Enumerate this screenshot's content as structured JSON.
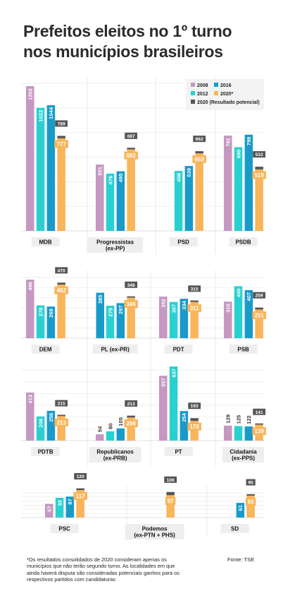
{
  "title_lines": [
    "Prefeitos eleitos no 1º turno",
    "nos municípios brasileiros"
  ],
  "footnote": "*Os resultados consolidados de 2020 consideram apenas os municípios que não terão segundo turno. As localidades em que ainda haverá disputa são consideradas potenciais ganhos para os respectivos partidos com candidaturas",
  "source": "Fonte: TSE",
  "colors": {
    "2008": "#c597c1",
    "2012": "#2ad0d0",
    "2016": "#199bc9",
    "2020*": "#f8b55a",
    "potential": "#555555"
  },
  "chart_data": {
    "type": "bar",
    "series_order": [
      "2008",
      "2012",
      "2016",
      "2020*"
    ],
    "legend": [
      {
        "key": "2008",
        "label": "2008"
      },
      {
        "key": "2016",
        "label": "2016"
      },
      {
        "key": "2012",
        "label": "2012"
      },
      {
        "key": "2020*",
        "label": "2020*"
      },
      {
        "key": "potential",
        "label": "2020 (Resultado potencial)"
      }
    ],
    "legend_position": "top-right",
    "panels": [
      {
        "ymax": 1202,
        "parties": [
          {
            "name": [
              "MDB"
            ],
            "values": [
              1202,
              1022,
              1044,
              777
            ],
            "potential": 789
          },
          {
            "name": [
              "Progressistas",
              "(ex-PP)"
            ],
            "values": [
              551,
              476,
              495,
              682
            ],
            "potential": 687
          },
          {
            "name": [
              "PSD"
            ],
            "values": [
              null,
              498,
              539,
              652
            ],
            "potential": 662
          },
          {
            "name": [
              "PSDB"
            ],
            "values": [
              791,
              695,
              799,
              519
            ],
            "potential": 533
          }
        ]
      },
      {
        "ymax": 496,
        "parties": [
          {
            "name": [
              "DEM"
            ],
            "values": [
              496,
              278,
              268,
              462
            ],
            "potential": 470
          },
          {
            "name": [
              "PL (ex-PR)"
            ],
            "values": [
              null,
              275,
              297,
              346
            ],
            "potential": 348,
            "extra": {
              "label": "385",
              "value": 385
            }
          },
          {
            "name": [
              "PDT"
            ],
            "values": [
              352,
              307,
              334,
              311
            ],
            "potential": 315
          },
          {
            "name": [
              "PSB"
            ],
            "values": [
              310,
              440,
              407,
              251
            ],
            "potential": 259
          }
        ]
      },
      {
        "ymax": 637,
        "parties": [
          {
            "name": [
              "PDTB"
            ],
            "values": [
              413,
              208,
              256,
              213
            ],
            "potential": 215
          },
          {
            "name": [
              "Republicanos",
              "(ex-PRB)"
            ],
            "values": [
              54,
              80,
              105,
              206
            ],
            "potential": 213
          },
          {
            "name": [
              "PT"
            ],
            "values": [
              557,
              637,
              254,
              178
            ],
            "potential": 193
          },
          {
            "name": [
              "Cidadania",
              "(ex-PPS)"
            ],
            "values": [
              129,
              125,
              122,
              139
            ],
            "potential": 141
          }
        ]
      },
      {
        "ymax": 120,
        "parties": [
          {
            "name": [
              "PSC"
            ],
            "values": [
              57,
              82,
              87,
              117
            ],
            "potential": 120
          },
          {
            "name": [
              "Podemos",
              "(ex-PTN + PHS)"
            ],
            "values": [
              null,
              null,
              null,
              97
            ],
            "potential": 106
          },
          {
            "name": [
              "SD"
            ],
            "values": [
              null,
              null,
              61,
              93
            ],
            "potential": 95
          }
        ]
      }
    ]
  }
}
